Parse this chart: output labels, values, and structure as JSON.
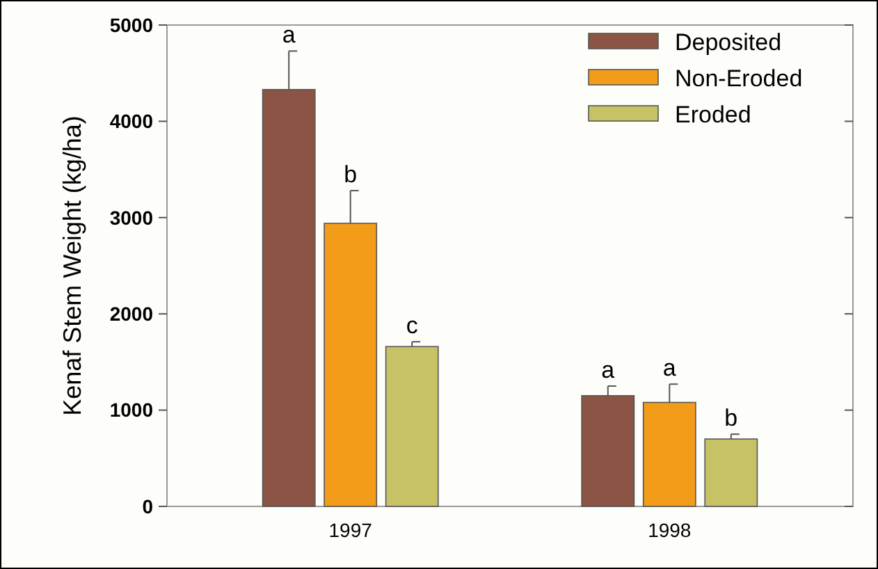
{
  "chart_data": {
    "type": "bar",
    "ylabel": "Kenaf Stem Weight (kg/ha)",
    "categories": [
      "1997",
      "1998"
    ],
    "series": [
      {
        "name": "Deposited",
        "color": "#8b5444",
        "values": [
          4330,
          1150
        ],
        "errors": [
          400,
          100
        ],
        "value_labels": [
          "a",
          "a"
        ]
      },
      {
        "name": "Non-Eroded",
        "color": "#f39c1a",
        "values": [
          2940,
          1080
        ],
        "errors": [
          340,
          190
        ],
        "value_labels": [
          "b",
          "a"
        ]
      },
      {
        "name": "Eroded",
        "color": "#c7c266",
        "values": [
          1660,
          700
        ],
        "errors": [
          50,
          50
        ],
        "value_labels": [
          "c",
          "b"
        ]
      }
    ],
    "ylim": [
      0,
      5000
    ],
    "yticks": [
      0,
      1000,
      2000,
      3000,
      4000,
      5000
    ],
    "legend": "top right"
  }
}
